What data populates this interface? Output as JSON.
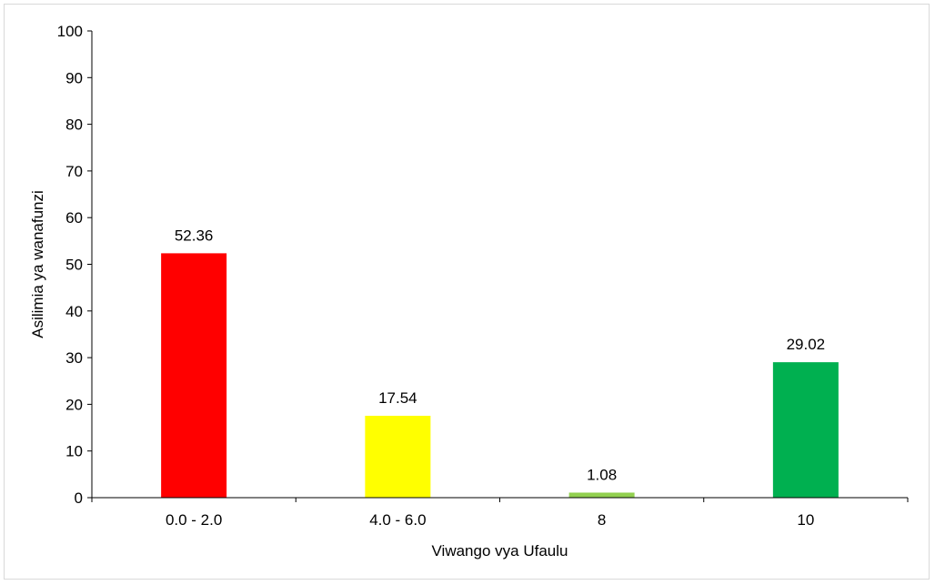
{
  "chart_data": {
    "type": "bar",
    "title": "",
    "xlabel": "Viwango vya Ufaulu",
    "ylabel": "Asilimia ya wanafunzi",
    "categories": [
      "0.0 - 2.0",
      "4.0 - 6.0",
      "8",
      "10"
    ],
    "values": [
      52.36,
      17.54,
      1.08,
      29.02
    ],
    "value_labels": [
      "52.36",
      "17.54",
      "1.08",
      "29.02"
    ],
    "colors": [
      "#ff0000",
      "#ffff00",
      "#92d050",
      "#00b050"
    ],
    "ylim": [
      0,
      100
    ],
    "yticks": [
      0,
      10,
      20,
      30,
      40,
      50,
      60,
      70,
      80,
      90,
      100
    ],
    "grid": false,
    "legend": "none"
  }
}
